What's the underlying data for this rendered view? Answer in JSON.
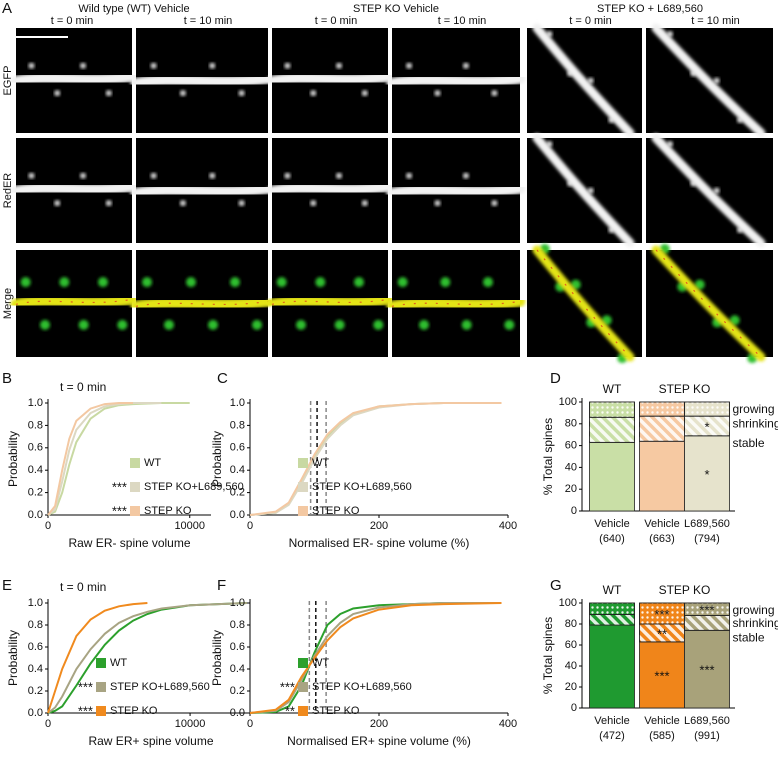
{
  "panel_a": {
    "label": "A",
    "columns": [
      {
        "title": "Wild type (WT) Vehicle",
        "times": [
          "t = 0 min",
          "t = 10 min"
        ]
      },
      {
        "title": "STEP KO Vehicle",
        "times": [
          "t = 0 min",
          "t = 10 min"
        ]
      },
      {
        "title": "STEP KO + L689,560",
        "times": [
          "t = 0 min",
          "t = 10 min"
        ]
      }
    ],
    "rows": [
      "EGFP",
      "RedER",
      "Merge"
    ]
  },
  "chart_data": [
    {
      "panel_label": "B",
      "type": "line",
      "annotation": "t = 0 min",
      "xlabel": "Raw ER- spine volume",
      "ylabel": "Probability",
      "x": [
        0,
        500,
        1000,
        1500,
        2000,
        3000,
        4000,
        5000,
        6000,
        8000,
        10000
      ],
      "xlim": [
        0,
        11500
      ],
      "xticks": [
        0,
        10000
      ],
      "ylim": [
        0,
        1
      ],
      "yticks": [
        {
          "value": 0,
          "label": "0.0"
        },
        0.2,
        0.4,
        0.6,
        0.8,
        {
          "value": 1,
          "label": "1.0"
        }
      ],
      "series": [
        {
          "name": "WT",
          "color": "#c8d9a2",
          "values": [
            0,
            0.03,
            0.2,
            0.45,
            0.65,
            0.86,
            0.95,
            0.98,
            0.99,
            1,
            1
          ]
        },
        {
          "name": "STEP KO+L689,560",
          "significance": "***",
          "color": "#dcd8c2",
          "values": [
            0,
            0.05,
            0.3,
            0.58,
            0.76,
            0.91,
            0.97,
            0.99,
            1,
            1,
            null
          ]
        },
        {
          "name": "STEP KO",
          "significance": "***",
          "color": "#f3c8a2",
          "values": [
            0,
            0.08,
            0.4,
            0.68,
            0.84,
            0.95,
            0.99,
            1,
            1,
            null,
            null
          ]
        }
      ]
    },
    {
      "panel_label": "C",
      "type": "line",
      "xlabel": "Normalised ER- spine volume (%)",
      "ylabel": "Probability",
      "x": [
        0,
        40,
        60,
        80,
        100,
        120,
        140,
        160,
        200,
        250,
        300,
        390
      ],
      "xlim": [
        0,
        400
      ],
      "xticks": [
        0,
        200,
        400
      ],
      "ylim": [
        0,
        1
      ],
      "yticks": [
        {
          "value": 0,
          "label": "0.0"
        },
        0.2,
        0.4,
        0.6,
        0.8,
        {
          "value": 1,
          "label": "1.0"
        }
      ],
      "vlines": [
        {
          "value": 94,
          "color": "#888888"
        },
        {
          "value": 104,
          "color": "#111111"
        },
        {
          "value": 118,
          "color": "#888888"
        }
      ],
      "series": [
        {
          "name": "WT",
          "color": "#c8d9a2",
          "values": [
            0,
            0.02,
            0.1,
            0.3,
            0.52,
            0.7,
            0.82,
            0.9,
            0.97,
            0.99,
            1,
            1
          ]
        },
        {
          "name": "STEP KO+L689,560",
          "color": "#dcd8c2",
          "values": [
            0,
            0.02,
            0.09,
            0.28,
            0.5,
            0.68,
            0.8,
            0.89,
            0.96,
            0.99,
            1,
            1
          ]
        },
        {
          "name": "STEP KO",
          "color": "#f3c8a2",
          "values": [
            0,
            0.03,
            0.11,
            0.32,
            0.54,
            0.72,
            0.83,
            0.91,
            0.97,
            0.99,
            1,
            1
          ]
        }
      ]
    },
    {
      "panel_label": "D",
      "type": "stacked_bar",
      "ylabel": "% Total spines",
      "categories": [
        "Vehicle",
        "Vehicle",
        "L689,560"
      ],
      "counts": [
        "(640)",
        "(663)",
        "(794)"
      ],
      "group_labels": [
        "WT",
        "STEP KO"
      ],
      "bar_colors": [
        "#c9dfa6",
        "#f6c9a2",
        "#e6e3cc"
      ],
      "ylim": [
        0,
        100
      ],
      "yticks": [
        0,
        20,
        40,
        60,
        80,
        100
      ],
      "series": [
        {
          "name": "stable",
          "pattern": "solid",
          "values": [
            63,
            64,
            69
          ],
          "marks": [
            null,
            null,
            "*"
          ]
        },
        {
          "name": "shrinking",
          "pattern": "stripes",
          "values": [
            23,
            23,
            18
          ],
          "marks": [
            null,
            null,
            "*"
          ]
        },
        {
          "name": "growing",
          "pattern": "dots",
          "values": [
            14,
            13,
            13
          ],
          "marks": [
            null,
            null,
            null
          ]
        }
      ]
    },
    {
      "panel_label": "E",
      "type": "line",
      "annotation": "t = 0 min",
      "xlabel": "Raw ER+ spine volume",
      "ylabel": "Probability",
      "x": [
        0,
        500,
        1000,
        2000,
        3000,
        4000,
        5000,
        6000,
        7000,
        8000,
        10000,
        12000,
        14000
      ],
      "xlim": [
        0,
        14500
      ],
      "xticks": [
        0,
        10000
      ],
      "ylim": [
        0,
        1
      ],
      "yticks": [
        {
          "value": 0,
          "label": "0.0"
        },
        0.2,
        0.4,
        0.6,
        0.8,
        {
          "value": 1,
          "label": "1.0"
        }
      ],
      "series": [
        {
          "name": "WT",
          "color": "#2ca02c",
          "values": [
            0,
            0.02,
            0.06,
            0.25,
            0.45,
            0.62,
            0.75,
            0.84,
            0.9,
            0.94,
            0.98,
            0.99,
            1
          ]
        },
        {
          "name": "STEP KO+L689,560",
          "significance": "***",
          "color": "#a8a483",
          "values": [
            0,
            0.05,
            0.15,
            0.4,
            0.58,
            0.72,
            0.82,
            0.88,
            0.92,
            0.95,
            0.98,
            0.99,
            1
          ]
        },
        {
          "name": "STEP KO",
          "significance": "***",
          "color": "#f08a1e",
          "values": [
            0,
            0.2,
            0.4,
            0.7,
            0.85,
            0.93,
            0.97,
            0.99,
            1,
            null,
            null,
            null,
            null
          ]
        }
      ]
    },
    {
      "panel_label": "F",
      "type": "line",
      "xlabel": "Normalised ER+ spine volume (%)",
      "ylabel": "Probability",
      "x": [
        0,
        40,
        60,
        80,
        100,
        120,
        140,
        160,
        200,
        250,
        300,
        390
      ],
      "xlim": [
        0,
        400
      ],
      "xticks": [
        0,
        200,
        400
      ],
      "ylim": [
        0,
        1
      ],
      "yticks": [
        {
          "value": 0,
          "label": "0.0"
        },
        0.2,
        0.4,
        0.6,
        0.8,
        {
          "value": 1,
          "label": "1.0"
        }
      ],
      "vlines": [
        {
          "value": 92,
          "color": "#888888"
        },
        {
          "value": 102,
          "color": "#111111"
        },
        {
          "value": 118,
          "color": "#888888"
        }
      ],
      "series": [
        {
          "name": "WT",
          "color": "#2ca02c",
          "values": [
            0,
            0.01,
            0.06,
            0.25,
            0.55,
            0.8,
            0.9,
            0.95,
            0.98,
            0.99,
            1,
            1
          ]
        },
        {
          "name": "STEP KO+L689,560",
          "significance": "***",
          "color": "#a8a483",
          "values": [
            0,
            0.02,
            0.1,
            0.3,
            0.52,
            0.7,
            0.82,
            0.9,
            0.96,
            0.99,
            1,
            1
          ]
        },
        {
          "name": "STEP KO",
          "significance": "**",
          "color": "#f08a1e",
          "values": [
            0,
            0.03,
            0.12,
            0.33,
            0.5,
            0.66,
            0.78,
            0.86,
            0.94,
            0.98,
            0.99,
            1
          ]
        }
      ]
    },
    {
      "panel_label": "G",
      "type": "stacked_bar",
      "ylabel": "% Total spines",
      "categories": [
        "Vehicle",
        "Vehicle",
        "L689,560"
      ],
      "counts": [
        "(472)",
        "(585)",
        "(991)"
      ],
      "group_labels": [
        "WT",
        "STEP KO"
      ],
      "bar_colors": [
        "#1f9a30",
        "#f0851a",
        "#a8a27a"
      ],
      "ylim": [
        0,
        100
      ],
      "yticks": [
        0,
        20,
        40,
        60,
        80,
        100
      ],
      "series": [
        {
          "name": "stable",
          "pattern": "solid",
          "values": [
            79,
            63,
            74
          ],
          "marks": [
            null,
            "***",
            "***"
          ]
        },
        {
          "name": "shrinking",
          "pattern": "stripes",
          "values": [
            10,
            17,
            14
          ],
          "marks": [
            null,
            "**",
            null
          ]
        },
        {
          "name": "growing",
          "pattern": "dots",
          "values": [
            11,
            20,
            12
          ],
          "marks": [
            null,
            "***",
            "***"
          ]
        }
      ]
    }
  ]
}
